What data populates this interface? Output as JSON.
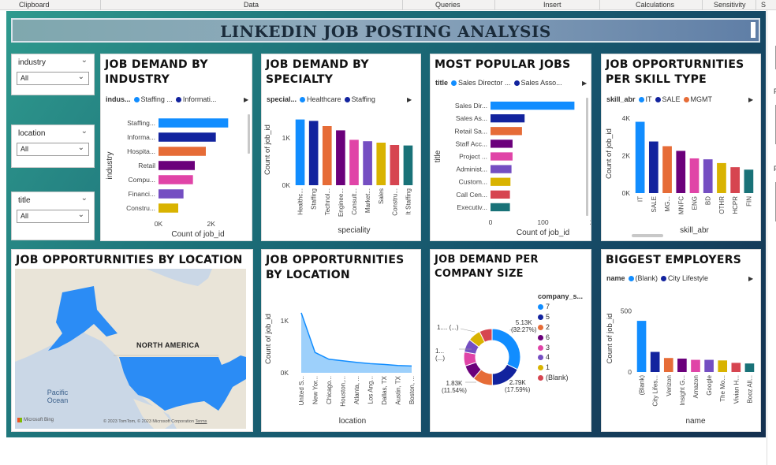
{
  "ribbon": {
    "sections": [
      "Clipboard",
      "Data",
      "Queries",
      "Insert",
      "Calculations",
      "Sensitivity",
      "S"
    ]
  },
  "banner": {
    "title": "LINKEDIN JOB POSTING ANALYSIS"
  },
  "slicers": [
    {
      "label": "industry",
      "value": "All"
    },
    {
      "label": "location",
      "value": "All"
    },
    {
      "label": "title",
      "value": "All"
    }
  ],
  "right_pane": {
    "labels": [
      "F",
      "F"
    ]
  },
  "colors": {
    "blue": "#118dff",
    "navy": "#12239e",
    "orange": "#e66c37",
    "purple": "#6b007b",
    "pink": "#e044a7",
    "violet": "#744ec2",
    "yellow": "#d9b300",
    "red": "#d64550",
    "teal": "#197278"
  },
  "industry": {
    "title": "JOB DEMAND BY INDUSTRY",
    "legend_title": "indus...",
    "legend_items": [
      "Staffing ...",
      "Informati..."
    ],
    "ylabel": "industry",
    "xlabel": "Count of job_id",
    "xticks": [
      "0K",
      "2K"
    ],
    "chart_data": {
      "type": "bar",
      "categories": [
        "Staffing...",
        "Informa...",
        "Hospita...",
        "Retail",
        "Compu...",
        "Financi...",
        "Constru..."
      ],
      "values": [
        2650,
        2180,
        1800,
        1380,
        1310,
        950,
        750
      ],
      "xlim": [
        0,
        3000
      ]
    }
  },
  "specialty": {
    "title": "JOB DEMAND BY SPECIALTY",
    "legend_title": "special...",
    "legend_items": [
      "Healthcare",
      "Staffing"
    ],
    "ylabel": "Count of job_id",
    "xlabel": "speciality",
    "yticks": [
      "0K",
      "1K"
    ],
    "chart_data": {
      "type": "bar",
      "categories": [
        "Healthc...",
        "Staffing",
        "Technol...",
        "Enginee...",
        "Consult...",
        "Market...",
        "Sales",
        "Constru...",
        "It Staffing"
      ],
      "values": [
        1390,
        1360,
        1250,
        1160,
        960,
        930,
        900,
        850,
        840
      ],
      "ylim": [
        0,
        1500
      ]
    }
  },
  "popular": {
    "title": "MOST POPULAR JOBS",
    "legend_title": "title",
    "legend_items": [
      "Sales Director ...",
      "Sales Asso..."
    ],
    "ylabel": "title",
    "xlabel": "Count of job_id",
    "xticks": [
      "0",
      "100",
      "200"
    ],
    "chart_data": {
      "type": "bar",
      "categories": [
        "Sales Dir...",
        "Sales As...",
        "Retail Sa...",
        "Staff Acc...",
        "Project ...",
        "Administ...",
        "Custom...",
        "Call Cen...",
        "Executiv..."
      ],
      "values": [
        160,
        65,
        60,
        42,
        42,
        40,
        38,
        37,
        37
      ],
      "xlim": [
        0,
        200
      ]
    }
  },
  "skill": {
    "title": "JOB OPPORTURNITIES PER SKILL TYPE",
    "legend_title": "skill_abr",
    "legend_items": [
      "IT",
      "SALE",
      "MGMT"
    ],
    "ylabel": "Count of job_id",
    "xlabel": "skill_abr",
    "yticks": [
      "0K",
      "2K",
      "4K"
    ],
    "chart_data": {
      "type": "bar",
      "categories": [
        "IT",
        "SALE",
        "MG...",
        "MNFC",
        "ENG",
        "BD",
        "OTHR",
        "HCPR",
        "FIN"
      ],
      "values": [
        3800,
        2750,
        2500,
        2250,
        1850,
        1800,
        1600,
        1380,
        1250
      ],
      "ylim": [
        0,
        4200
      ]
    }
  },
  "map": {
    "title": "JOB OPPORTURNITIES BY LOCATION",
    "continent_label": "NORTH AMERICA",
    "ocean_label": "Pacific Ocean",
    "attribution": "© 2023 TomTom, © 2023 Microsoft Corporation",
    "terms": "Terms",
    "logo": "Microsoft Bing"
  },
  "location": {
    "title": "JOB OPPORTURNITIES BY LOCATION",
    "ylabel": "Count of job_id",
    "xlabel": "location",
    "yticks": [
      "0K",
      "1K"
    ],
    "chart_data": {
      "type": "area",
      "categories": [
        "United S...",
        "New Yor...",
        "Chicago...",
        "Houston,...",
        "Atlanta, ...",
        "Los Ang...",
        "Dallas, TX",
        "Austin, TX",
        "Boston, ..."
      ],
      "values": [
        1150,
        390,
        260,
        230,
        200,
        175,
        160,
        140,
        130
      ],
      "ylim": [
        0,
        1300
      ]
    }
  },
  "company_size": {
    "title": "JOB DEMAND PER COMPANY SIZE",
    "legend_title": "company_s...",
    "legend_items": [
      "7",
      "5",
      "2",
      "6",
      "3",
      "4",
      "1",
      "(Blank)"
    ],
    "labels": {
      "big": "5.13K",
      "big_pct": "(32.27%)",
      "mid": "2.79K",
      "mid_pct": "(17.59%)",
      "low": "1.83K",
      "low_pct": "(11.54%)",
      "a": "1.... (...)",
      "b": "1...",
      "b2": "(...)"
    },
    "chart_data": {
      "type": "pie",
      "categories": [
        "7",
        "5",
        "2",
        "6",
        "3",
        "4",
        "1",
        "(Blank)"
      ],
      "values": [
        32.27,
        17.59,
        11.54,
        8.5,
        8.0,
        7.5,
        7.3,
        7.3
      ]
    }
  },
  "employers": {
    "title": "BIGGEST EMPLOYERS",
    "legend_title": "name",
    "legend_items": [
      "(Blank)",
      "City Lifestyle"
    ],
    "ylabel": "Count of job_id",
    "xlabel": "name",
    "yticks": [
      "0",
      "500"
    ],
    "chart_data": {
      "type": "bar",
      "categories": [
        "(Blank)",
        "City Lifes...",
        "Verizon",
        "Insight G...",
        "Amazon",
        "Google",
        "The Mo...",
        "Vivian H...",
        "Booz All..."
      ],
      "values": [
        420,
        165,
        115,
        110,
        100,
        100,
        95,
        75,
        70
      ],
      "ylim": [
        0,
        550
      ]
    }
  }
}
